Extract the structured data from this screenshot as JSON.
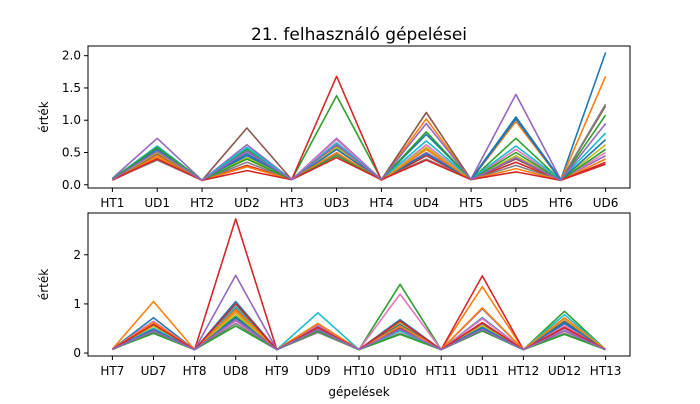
{
  "figure": {
    "title": "21. felhasználó gépelései",
    "xlabel": "gépelések"
  },
  "colors": [
    "#1f77b4",
    "#ff7f0e",
    "#2ca02c",
    "#d62728",
    "#9467bd",
    "#8c564b",
    "#e377c2",
    "#7f7f7f",
    "#bcbd22",
    "#17becf"
  ],
  "chart_data": [
    {
      "type": "line",
      "ylabel": "érték",
      "categories": [
        "HT1",
        "UD1",
        "HT2",
        "UD2",
        "HT3",
        "UD3",
        "HT4",
        "UD4",
        "HT5",
        "UD5",
        "HT6",
        "UD6"
      ],
      "ylim": [
        -0.05,
        2.15
      ],
      "yticks": [
        0.0,
        0.5,
        1.0,
        1.5,
        2.0
      ],
      "ytick_labels": [
        "0.0",
        "0.5",
        "1.0",
        "1.5",
        "2.0"
      ],
      "grid": false,
      "series": [
        {
          "values": [
            0.08,
            0.5,
            0.07,
            0.45,
            0.08,
            0.62,
            0.08,
            0.78,
            0.09,
            1.05,
            0.08,
            2.05
          ]
        },
        {
          "values": [
            0.08,
            0.45,
            0.07,
            0.4,
            0.08,
            0.55,
            0.08,
            1.02,
            0.08,
            0.98,
            0.07,
            1.68
          ]
        },
        {
          "values": [
            0.08,
            0.42,
            0.07,
            0.55,
            0.08,
            1.38,
            0.08,
            0.55,
            0.08,
            0.72,
            0.07,
            1.08
          ]
        },
        {
          "values": [
            0.07,
            0.4,
            0.07,
            0.3,
            0.08,
            1.68,
            0.07,
            0.45,
            0.08,
            0.35,
            0.07,
            0.32
          ]
        },
        {
          "values": [
            0.1,
            0.72,
            0.07,
            0.62,
            0.08,
            0.72,
            0.08,
            0.5,
            0.09,
            1.4,
            0.08,
            0.45
          ]
        },
        {
          "values": [
            0.08,
            0.48,
            0.07,
            0.88,
            0.08,
            0.6,
            0.08,
            1.12,
            0.08,
            0.4,
            0.07,
            1.22
          ]
        },
        {
          "values": [
            0.09,
            0.55,
            0.07,
            0.5,
            0.08,
            0.7,
            0.07,
            0.62,
            0.08,
            0.55,
            0.07,
            0.5
          ]
        },
        {
          "values": [
            0.08,
            0.38,
            0.07,
            0.35,
            0.08,
            0.48,
            0.08,
            0.4,
            0.08,
            0.3,
            0.07,
            1.25
          ]
        },
        {
          "values": [
            0.08,
            0.5,
            0.07,
            0.42,
            0.08,
            0.58,
            0.08,
            0.58,
            0.08,
            0.45,
            0.07,
            0.62
          ]
        },
        {
          "values": [
            0.09,
            0.6,
            0.07,
            0.58,
            0.08,
            0.65,
            0.08,
            0.68,
            0.09,
            0.6,
            0.08,
            0.8
          ]
        },
        {
          "values": [
            0.08,
            0.55,
            0.07,
            0.48,
            0.08,
            0.55,
            0.08,
            0.48,
            0.08,
            1.02,
            0.07,
            0.7
          ]
        },
        {
          "values": [
            0.08,
            0.42,
            0.07,
            0.28,
            0.08,
            0.5,
            0.07,
            0.55,
            0.08,
            0.25,
            0.07,
            0.4
          ]
        },
        {
          "values": [
            0.09,
            0.58,
            0.07,
            0.4,
            0.08,
            0.45,
            0.08,
            0.82,
            0.08,
            0.5,
            0.07,
            0.55
          ]
        },
        {
          "values": [
            0.08,
            0.4,
            0.07,
            0.22,
            0.08,
            0.42,
            0.08,
            0.38,
            0.08,
            0.2,
            0.07,
            0.35
          ]
        },
        {
          "values": [
            0.08,
            0.52,
            0.07,
            0.52,
            0.08,
            0.62,
            0.08,
            0.95,
            0.08,
            0.42,
            0.07,
            0.95
          ]
        }
      ]
    },
    {
      "type": "line",
      "ylabel": "érték",
      "categories": [
        "HT7",
        "UD7",
        "HT8",
        "UD8",
        "HT9",
        "UD9",
        "HT10",
        "UD10",
        "HT11",
        "UD11",
        "HT12",
        "UD12",
        "HT13"
      ],
      "ylim": [
        -0.06,
        2.85
      ],
      "yticks": [
        0,
        1,
        2
      ],
      "ytick_labels": [
        "0",
        "1",
        "2"
      ],
      "grid": false,
      "series": [
        {
          "values": [
            0.08,
            0.72,
            0.07,
            1.05,
            0.07,
            0.55,
            0.07,
            0.68,
            0.07,
            0.72,
            0.07,
            0.6,
            0.07
          ]
        },
        {
          "values": [
            0.08,
            1.05,
            0.07,
            0.85,
            0.07,
            0.48,
            0.07,
            0.55,
            0.07,
            1.35,
            0.07,
            0.55,
            0.07
          ]
        },
        {
          "values": [
            0.08,
            0.55,
            0.07,
            0.75,
            0.07,
            0.6,
            0.07,
            1.4,
            0.07,
            0.55,
            0.07,
            0.85,
            0.07
          ]
        },
        {
          "values": [
            0.07,
            0.45,
            0.07,
            2.73,
            0.07,
            0.5,
            0.07,
            0.45,
            0.07,
            1.57,
            0.07,
            0.45,
            0.07
          ]
        },
        {
          "values": [
            0.08,
            0.6,
            0.07,
            1.58,
            0.07,
            0.55,
            0.07,
            0.52,
            0.07,
            0.9,
            0.07,
            0.5,
            0.07
          ]
        },
        {
          "values": [
            0.08,
            0.5,
            0.07,
            0.9,
            0.07,
            0.45,
            0.07,
            0.5,
            0.07,
            0.6,
            0.07,
            0.65,
            0.07
          ]
        },
        {
          "values": [
            0.08,
            0.65,
            0.07,
            0.65,
            0.07,
            0.58,
            0.07,
            1.2,
            0.07,
            0.7,
            0.07,
            0.55,
            0.07
          ]
        },
        {
          "values": [
            0.08,
            0.42,
            0.07,
            0.6,
            0.07,
            0.42,
            0.07,
            0.4,
            0.07,
            0.45,
            0.07,
            0.4,
            0.07
          ]
        },
        {
          "values": [
            0.08,
            0.55,
            0.07,
            0.8,
            0.07,
            0.5,
            0.07,
            0.62,
            0.07,
            0.55,
            0.07,
            0.7,
            0.07
          ]
        },
        {
          "values": [
            0.08,
            0.5,
            0.07,
            0.95,
            0.07,
            0.82,
            0.07,
            0.45,
            0.07,
            0.5,
            0.07,
            0.78,
            0.07
          ]
        },
        {
          "values": [
            0.08,
            0.48,
            0.07,
            0.72,
            0.07,
            0.52,
            0.07,
            0.58,
            0.07,
            0.52,
            0.07,
            0.62,
            0.07
          ]
        },
        {
          "values": [
            0.08,
            0.62,
            0.07,
            0.88,
            0.07,
            0.6,
            0.07,
            0.55,
            0.07,
            0.92,
            0.07,
            0.72,
            0.07
          ]
        },
        {
          "values": [
            0.08,
            0.4,
            0.07,
            0.55,
            0.07,
            0.45,
            0.07,
            0.38,
            0.07,
            0.45,
            0.07,
            0.38,
            0.07
          ]
        },
        {
          "values": [
            0.08,
            0.58,
            0.07,
            1.0,
            0.07,
            0.52,
            0.07,
            0.65,
            0.07,
            0.62,
            0.07,
            0.52,
            0.07
          ]
        },
        {
          "values": [
            0.08,
            0.45,
            0.07,
            0.68,
            0.07,
            0.48,
            0.07,
            0.48,
            0.07,
            0.48,
            0.07,
            0.45,
            0.07
          ]
        }
      ]
    }
  ]
}
